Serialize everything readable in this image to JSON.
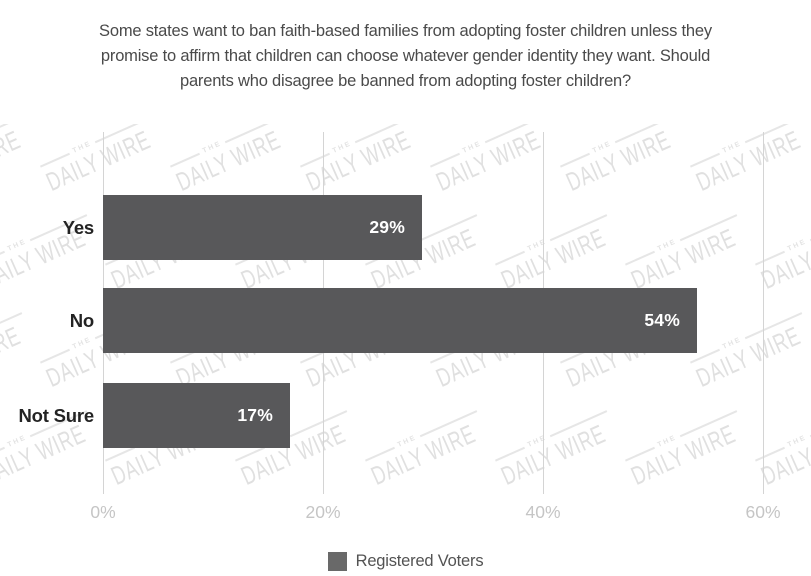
{
  "title": {
    "lines": [
      "Some states want to ban faith-based families from adopting foster children unless they",
      "promise to affirm that children can choose whatever gender identity they want. Should",
      "parents who disagree be banned from adopting foster children?"
    ]
  },
  "chart_data": {
    "type": "bar",
    "orientation": "horizontal",
    "title": "Some states want to ban faith-based families from adopting foster children unless they promise to affirm that children can choose whatever gender identity they want. Should parents who disagree be banned from adopting foster children?",
    "categories": [
      "Yes",
      "No",
      "Not Sure"
    ],
    "series": [
      {
        "name": "Registered Voters",
        "values": [
          29,
          54,
          17
        ]
      }
    ],
    "value_labels": [
      "29%",
      "54%",
      "17%"
    ],
    "x_tick_labels": [
      "0%",
      "20%",
      "40%",
      "60%"
    ],
    "xlim": [
      0,
      60
    ],
    "grid": true,
    "legend_position": "bottom",
    "bar_color": "#58585a",
    "value_label_color": "#ffffff"
  },
  "watermark": {
    "prefix": "THE",
    "text": "DAILY WIRE"
  },
  "colors": {
    "title_text": "#4a4a4a",
    "category_label": "#232323",
    "axis_tick_label": "#c5c5c5",
    "gridline": "#d4d4d4",
    "watermark": "#e0e0e0",
    "legend_swatch": "#696969",
    "legend_label": "#535353",
    "background": "#ffffff"
  }
}
